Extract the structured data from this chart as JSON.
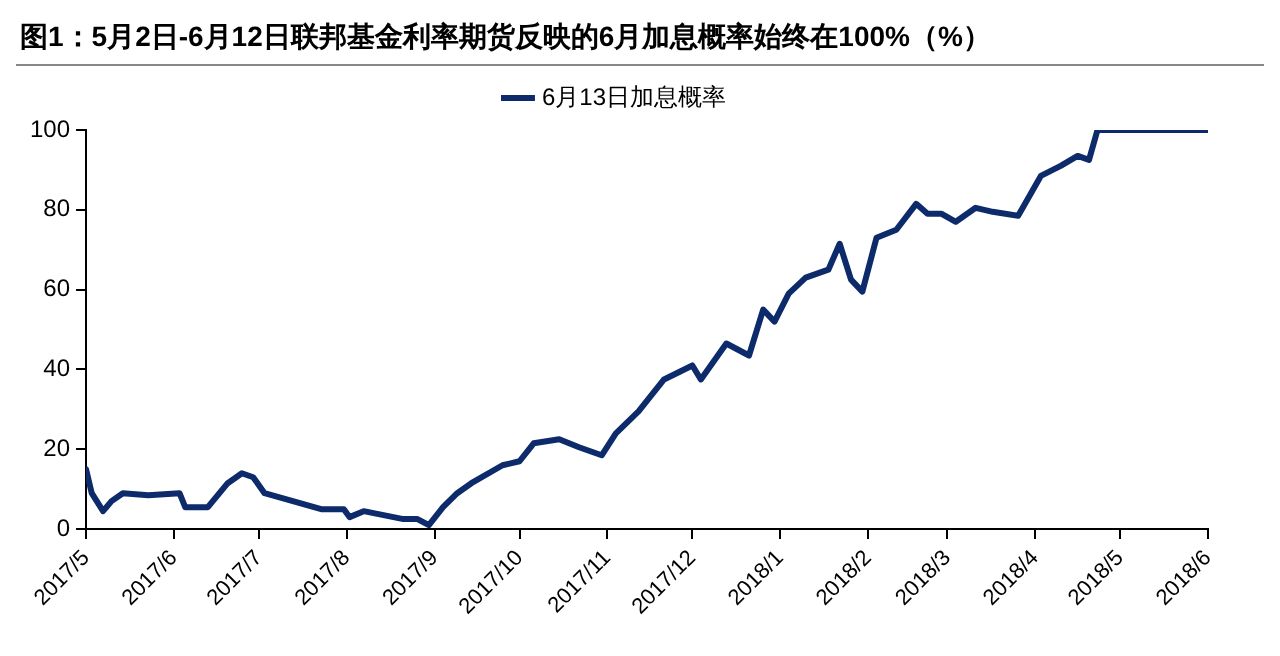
{
  "chart_data": {
    "type": "line",
    "title": "图1：5月2日-6月12日联邦基金利率期货反映的6月加息概率始终在100%（%）",
    "x": [
      "2017-05-01",
      "2017-05-03",
      "2017-05-07",
      "2017-05-10",
      "2017-05-14",
      "2017-05-23",
      "2017-06-03",
      "2017-06-05",
      "2017-06-13",
      "2017-06-20",
      "2017-06-25",
      "2017-06-29",
      "2017-07-03",
      "2017-07-13",
      "2017-07-23",
      "2017-07-31",
      "2017-08-02",
      "2017-08-07",
      "2017-08-21",
      "2017-08-26",
      "2017-08-30",
      "2017-09-04",
      "2017-09-09",
      "2017-09-14",
      "2017-09-25",
      "2017-10-01",
      "2017-10-06",
      "2017-10-15",
      "2017-10-22",
      "2017-10-30",
      "2017-11-04",
      "2017-11-12",
      "2017-11-21",
      "2017-12-01",
      "2017-12-04",
      "2017-12-13",
      "2017-12-21",
      "2017-12-26",
      "2017-12-30",
      "2018-01-04",
      "2018-01-10",
      "2018-01-18",
      "2018-01-22",
      "2018-01-26",
      "2018-01-30",
      "2018-02-04",
      "2018-02-11",
      "2018-02-18",
      "2018-02-22",
      "2018-02-27",
      "2018-03-04",
      "2018-03-11",
      "2018-03-17",
      "2018-03-26",
      "2018-04-03",
      "2018-04-10",
      "2018-04-16",
      "2018-04-20",
      "2018-04-23",
      "2018-06-01"
    ],
    "series": [
      {
        "name": "6月13日加息概率",
        "color": "#0d2a6b",
        "values": [
          15,
          9,
          4.5,
          7,
          9,
          8.5,
          9,
          5.5,
          5.5,
          11.5,
          14,
          13,
          9,
          7,
          5,
          5,
          3,
          4.5,
          2.5,
          2.5,
          1,
          5.5,
          9,
          11.5,
          16,
          17,
          21.5,
          22.5,
          20.5,
          18.5,
          24,
          29.5,
          37.5,
          41,
          37.5,
          46.5,
          43.5,
          55,
          52,
          59,
          63,
          65,
          71.5,
          62.5,
          59.5,
          73,
          75,
          81.5,
          79,
          79,
          77,
          80.5,
          79.5,
          78.5,
          88.5,
          91,
          93.5,
          92.5,
          100,
          100
        ]
      }
    ],
    "xlim": [
      "2017-05-01",
      "2018-06-01"
    ],
    "xticks": [
      {
        "value": "2017-05-01",
        "label": "2017/5"
      },
      {
        "value": "2017-06-01",
        "label": "2017/6"
      },
      {
        "value": "2017-07-01",
        "label": "2017/7"
      },
      {
        "value": "2017-08-01",
        "label": "2017/8"
      },
      {
        "value": "2017-09-01",
        "label": "2017/9"
      },
      {
        "value": "2017-10-01",
        "label": "2017/10"
      },
      {
        "value": "2017-11-01",
        "label": "2017/11"
      },
      {
        "value": "2017-12-01",
        "label": "2017/12"
      },
      {
        "value": "2018-01-01",
        "label": "2018/1"
      },
      {
        "value": "2018-02-01",
        "label": "2018/2"
      },
      {
        "value": "2018-03-01",
        "label": "2018/3"
      },
      {
        "value": "2018-04-01",
        "label": "2018/4"
      },
      {
        "value": "2018-05-01",
        "label": "2018/5"
      },
      {
        "value": "2018-06-01",
        "label": "2018/6"
      }
    ],
    "ylim": [
      0,
      100
    ],
    "yticks": [
      0,
      20,
      40,
      60,
      80,
      100
    ],
    "grid": false,
    "legend": "top",
    "marker": "none",
    "line_style": "solid"
  }
}
